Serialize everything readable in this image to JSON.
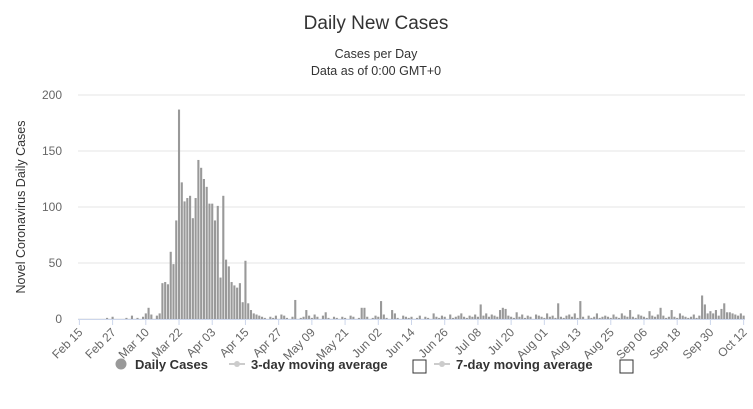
{
  "chart_data": {
    "type": "bar",
    "title": "Daily New Cases",
    "subtitle": [
      "Cases per Day",
      "Data as of 0:00 GMT+0"
    ],
    "y_label": "Novel Coronavirus Daily Cases",
    "categories": [
      "Feb 15",
      null,
      null,
      null,
      null,
      null,
      null,
      null,
      null,
      null,
      null,
      null,
      "Feb 27",
      null,
      null,
      null,
      null,
      null,
      null,
      null,
      null,
      null,
      null,
      null,
      "Mar 10",
      null,
      null,
      null,
      null,
      null,
      null,
      null,
      null,
      null,
      null,
      null,
      "Mar 22",
      null,
      null,
      null,
      null,
      null,
      null,
      null,
      null,
      null,
      null,
      null,
      "Apr 03",
      null,
      null,
      null,
      null,
      null,
      null,
      null,
      null,
      null,
      null,
      null,
      "Apr 15",
      null,
      null,
      null,
      null,
      null,
      null,
      null,
      null,
      null,
      null,
      null,
      "Apr 27",
      null,
      null,
      null,
      null,
      null,
      null,
      null,
      null,
      null,
      null,
      null,
      "May 09",
      null,
      null,
      null,
      null,
      null,
      null,
      null,
      null,
      null,
      null,
      null,
      "May 21",
      null,
      null,
      null,
      null,
      null,
      null,
      null,
      null,
      null,
      null,
      null,
      "Jun 02",
      null,
      null,
      null,
      null,
      null,
      null,
      null,
      null,
      null,
      null,
      null,
      "Jun 14",
      null,
      null,
      null,
      null,
      null,
      null,
      null,
      null,
      null,
      null,
      null,
      "Jun 26",
      null,
      null,
      null,
      null,
      null,
      null,
      null,
      null,
      null,
      null,
      null,
      "Jul 08",
      null,
      null,
      null,
      null,
      null,
      null,
      null,
      null,
      null,
      null,
      null,
      "Jul 20",
      null,
      null,
      null,
      null,
      null,
      null,
      null,
      null,
      null,
      null,
      null,
      "Aug 01",
      null,
      null,
      null,
      null,
      null,
      null,
      null,
      null,
      null,
      null,
      null,
      "Aug 13",
      null,
      null,
      null,
      null,
      null,
      null,
      null,
      null,
      null,
      null,
      null,
      "Aug 25",
      null,
      null,
      null,
      null,
      null,
      null,
      null,
      null,
      null,
      null,
      null,
      "Sep 06",
      null,
      null,
      null,
      null,
      null,
      null,
      null,
      null,
      null,
      null,
      null,
      "Sep 18",
      null,
      null,
      null,
      null,
      null,
      null,
      null,
      null,
      null,
      null,
      null,
      "Sep 30",
      null,
      null,
      null,
      null,
      null,
      null,
      null,
      null,
      null,
      null,
      null,
      "Oct 12"
    ],
    "series": [
      {
        "name": "Daily Cases",
        "color": "#999999",
        "visible": true,
        "values": [
          0,
          0,
          0,
          0,
          0,
          0,
          0,
          0,
          0,
          0,
          1,
          0,
          2,
          0,
          0,
          0,
          0,
          1,
          0,
          3,
          0,
          1,
          0,
          2,
          5,
          10,
          4,
          0,
          3,
          5,
          32,
          33,
          31,
          60,
          49,
          88,
          187,
          122,
          105,
          108,
          110,
          90,
          108,
          142,
          135,
          125,
          118,
          103,
          103,
          88,
          101,
          37,
          110,
          53,
          47,
          33,
          30,
          28,
          32,
          15,
          52,
          14,
          8,
          5,
          4,
          3,
          2,
          1,
          0,
          2,
          1,
          3,
          0,
          4,
          3,
          1,
          0,
          2,
          17,
          0,
          1,
          2,
          8,
          3,
          1,
          4,
          2,
          0,
          3,
          6,
          1,
          0,
          2,
          1,
          0,
          2,
          1,
          0,
          3,
          2,
          0,
          1,
          10,
          10,
          2,
          0,
          1,
          3,
          2,
          16,
          4,
          1,
          0,
          8,
          5,
          1,
          0,
          3,
          2,
          1,
          2,
          0,
          1,
          3,
          0,
          2,
          1,
          0,
          5,
          2,
          1,
          3,
          2,
          0,
          4,
          1,
          2,
          3,
          5,
          2,
          1,
          3,
          2,
          4,
          2,
          13,
          3,
          5,
          2,
          4,
          3,
          2,
          8,
          10,
          9,
          3,
          2,
          1,
          6,
          2,
          4,
          1,
          3,
          2,
          0,
          4,
          3,
          2,
          1,
          5,
          2,
          3,
          1,
          14,
          2,
          1,
          3,
          4,
          2,
          5,
          1,
          16,
          2,
          0,
          3,
          1,
          2,
          5,
          1,
          2,
          3,
          2,
          1,
          4,
          2,
          1,
          5,
          3,
          2,
          8,
          2,
          1,
          4,
          3,
          2,
          1,
          7,
          3,
          2,
          4,
          10,
          3,
          1,
          2,
          8,
          2,
          1,
          5,
          3,
          2,
          1,
          2,
          4,
          1,
          3,
          21,
          13,
          5,
          7,
          5,
          8,
          3,
          9,
          14,
          6,
          6,
          5,
          4,
          3,
          5,
          3
        ]
      },
      {
        "name": "3-day moving average",
        "color": "#cccccc",
        "visible": false
      },
      {
        "name": "7-day moving average",
        "color": "#cccccc",
        "visible": false
      }
    ],
    "ylim": [
      0,
      200
    ],
    "yticks": [
      0,
      50,
      100,
      150,
      200
    ],
    "grid": true
  }
}
